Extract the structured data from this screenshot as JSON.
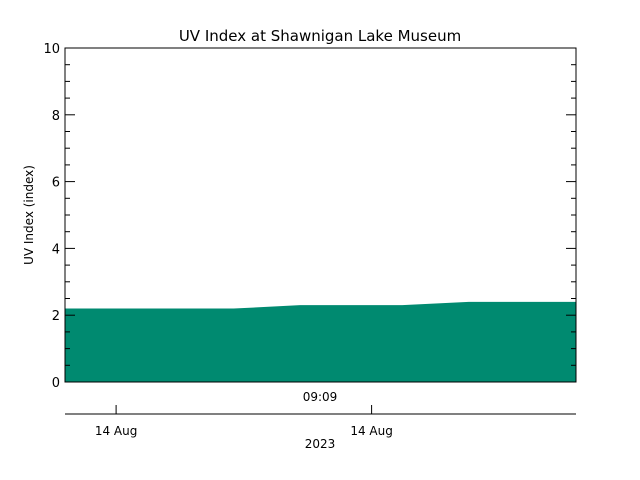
{
  "chart_data": {
    "type": "area",
    "title": "UV Index at Shawnigan Lake Museum",
    "ylabel": "UV Index (index)",
    "xlabel": "2023",
    "center_time_label": "09:09",
    "ylim": [
      0,
      10
    ],
    "y_ticks": [
      0,
      2,
      4,
      6,
      8,
      10
    ],
    "x_ticks": [
      "14 Aug",
      "14 Aug"
    ],
    "series": [
      {
        "color": "#008a70",
        "points": [
          {
            "t": 0.0,
            "v": 2.2
          },
          {
            "t": 0.33,
            "v": 2.2
          },
          {
            "t": 0.46,
            "v": 2.3
          },
          {
            "t": 0.66,
            "v": 2.3
          },
          {
            "t": 0.79,
            "v": 2.4
          },
          {
            "t": 1.0,
            "v": 2.4
          }
        ]
      }
    ],
    "grid": false
  }
}
